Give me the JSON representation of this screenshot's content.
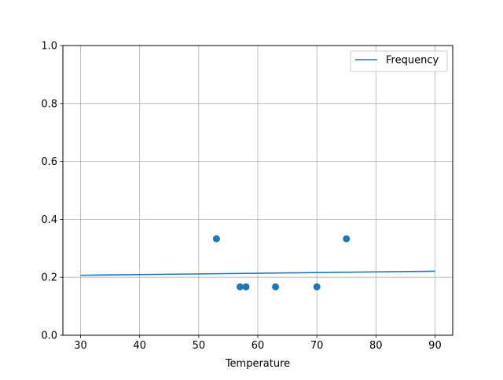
{
  "chart_data": {
    "type": "line+scatter",
    "title": "",
    "xlabel": "Temperature",
    "ylabel": "",
    "xlim": [
      27,
      93
    ],
    "ylim": [
      0,
      1.0
    ],
    "xticks": [
      30,
      40,
      50,
      60,
      70,
      80,
      90
    ],
    "yticks": [
      0.0,
      0.2,
      0.4,
      0.6,
      0.8,
      1.0
    ],
    "xtick_labels": [
      "30",
      "40",
      "50",
      "60",
      "70",
      "80",
      "90"
    ],
    "ytick_labels": [
      "0.0",
      "0.2",
      "0.4",
      "0.6",
      "0.8",
      "1.0"
    ],
    "grid": true,
    "legend_position": "top-right",
    "line": {
      "name": "Frequency",
      "x": [
        30,
        90
      ],
      "y": [
        0.207,
        0.221
      ],
      "color": "#1f77b4"
    },
    "scatter": {
      "x": [
        53,
        57,
        58,
        63,
        70,
        75
      ],
      "y": [
        0.333,
        0.167,
        0.167,
        0.167,
        0.167,
        0.333
      ],
      "color": "#1f77b4"
    }
  }
}
